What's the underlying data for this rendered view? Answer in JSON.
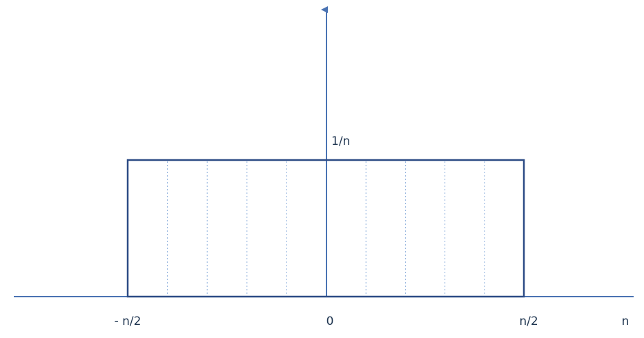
{
  "diagram": {
    "type": "uniform-distribution",
    "labels": {
      "x_axis": "n",
      "peak": "1/n",
      "left_edge": "- n/2",
      "origin": "0",
      "right_edge": "n/2"
    },
    "rectangle": {
      "height_label": "1/n",
      "subdivision_lines": 9
    },
    "colors": {
      "axis": "#4a73b3",
      "rect_stroke": "#2c4b85",
      "subdivision": "#8fb0dd",
      "text": "#1f3550"
    }
  }
}
